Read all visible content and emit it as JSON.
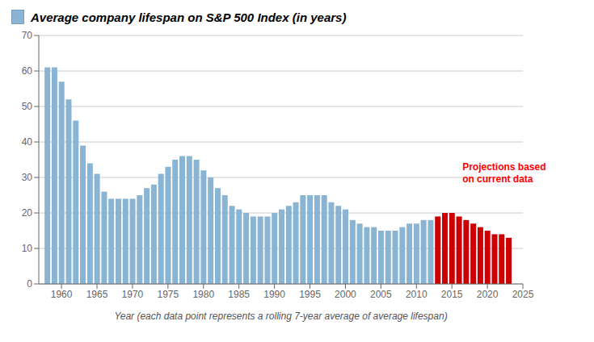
{
  "chart_data": {
    "type": "bar",
    "title": "Average company lifespan on S&P 500 Index (in years)",
    "x_label": "Year (each data point represents a rolling 7-year average of average lifespan)",
    "annotations": [
      {
        "text": "Projections based\non current data",
        "color": "#ff0000"
      }
    ],
    "x": [
      1958,
      1959,
      1960,
      1961,
      1962,
      1963,
      1964,
      1965,
      1966,
      1967,
      1968,
      1969,
      1970,
      1971,
      1972,
      1973,
      1974,
      1975,
      1976,
      1977,
      1978,
      1979,
      1980,
      1981,
      1982,
      1983,
      1984,
      1985,
      1986,
      1987,
      1988,
      1989,
      1990,
      1991,
      1992,
      1993,
      1994,
      1995,
      1996,
      1997,
      1998,
      1999,
      2000,
      2001,
      2002,
      2003,
      2004,
      2005,
      2006,
      2007,
      2008,
      2009,
      2010,
      2011,
      2012,
      2013,
      2014,
      2015,
      2016,
      2017,
      2018,
      2019,
      2020,
      2021,
      2022,
      2023
    ],
    "values": [
      61,
      61,
      57,
      52,
      46,
      39,
      34,
      31,
      26,
      24,
      24,
      24,
      24,
      25,
      27,
      28,
      31,
      33,
      35,
      36,
      36,
      35,
      32,
      30,
      27,
      25,
      22,
      21,
      20,
      19,
      19,
      19,
      20,
      21,
      22,
      23,
      25,
      25,
      25,
      25,
      23,
      22,
      21,
      18,
      17,
      16,
      16,
      15,
      15,
      15,
      16,
      17,
      17,
      18,
      18,
      19,
      20,
      20,
      19,
      18,
      17,
      16,
      15,
      14,
      14,
      13
    ],
    "colors": [
      "#8ab4d4",
      "#8ab4d4",
      "#8ab4d4",
      "#8ab4d4",
      "#8ab4d4",
      "#8ab4d4",
      "#8ab4d4",
      "#8ab4d4",
      "#8ab4d4",
      "#8ab4d4",
      "#8ab4d4",
      "#8ab4d4",
      "#8ab4d4",
      "#8ab4d4",
      "#8ab4d4",
      "#8ab4d4",
      "#8ab4d4",
      "#8ab4d4",
      "#8ab4d4",
      "#8ab4d4",
      "#8ab4d4",
      "#8ab4d4",
      "#8ab4d4",
      "#8ab4d4",
      "#8ab4d4",
      "#8ab4d4",
      "#8ab4d4",
      "#8ab4d4",
      "#8ab4d4",
      "#8ab4d4",
      "#8ab4d4",
      "#8ab4d4",
      "#8ab4d4",
      "#8ab4d4",
      "#8ab4d4",
      "#8ab4d4",
      "#8ab4d4",
      "#8ab4d4",
      "#8ab4d4",
      "#8ab4d4",
      "#8ab4d4",
      "#8ab4d4",
      "#8ab4d4",
      "#8ab4d4",
      "#8ab4d4",
      "#8ab4d4",
      "#8ab4d4",
      "#8ab4d4",
      "#8ab4d4",
      "#8ab4d4",
      "#8ab4d4",
      "#8ab4d4",
      "#8ab4d4",
      "#8ab4d4",
      "#8ab4d4",
      "#cc0000",
      "#cc0000",
      "#cc0000",
      "#cc0000",
      "#cc0000",
      "#cc0000",
      "#cc0000",
      "#cc0000",
      "#cc0000",
      "#cc0000",
      "#cc0000"
    ],
    "xlim": [
      1956.8,
      2025
    ],
    "xticks": [
      1960,
      1965,
      1970,
      1975,
      1980,
      1985,
      1990,
      1995,
      2000,
      2005,
      2010,
      2015,
      2020,
      2025
    ],
    "ylim": [
      0,
      70
    ],
    "yticks": [
      0,
      10,
      20,
      30,
      40,
      50,
      60,
      70
    ],
    "grid": true
  }
}
